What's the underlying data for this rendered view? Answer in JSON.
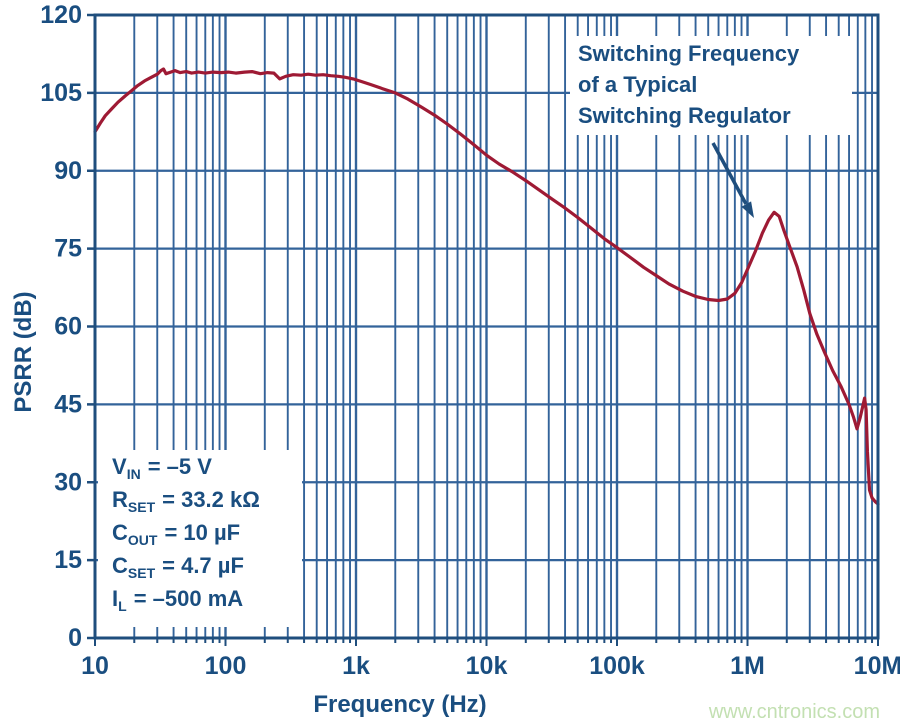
{
  "colors": {
    "grid": "#33639a",
    "axis": "#1f4e7d",
    "text": "#1a4e80",
    "curve": "#9e1a34",
    "arrow": "#1f4e7d",
    "watermark": "#c3e0b2",
    "background": "#ffffff"
  },
  "watermark": "www.cntronics.com",
  "chart_data": {
    "type": "line",
    "title": "",
    "xlabel": "Frequency (Hz)",
    "ylabel": "PSRR (dB)",
    "x_scale": "log",
    "xlim": [
      10,
      10000000
    ],
    "ylim": [
      0,
      120
    ],
    "grid": true,
    "y_ticks": [
      0,
      15,
      30,
      45,
      60,
      75,
      90,
      105,
      120
    ],
    "x_major_ticks": [
      10,
      100,
      1000,
      10000,
      100000,
      1000000,
      10000000
    ],
    "x_tick_labels": [
      "10",
      "100",
      "1k",
      "10k",
      "100k",
      "1M",
      "10M"
    ],
    "annotation": {
      "lines": [
        "Switching Frequency",
        "of a Typical",
        "Switching Regulator"
      ],
      "arrow_points_to": [
        1600000,
        82
      ]
    },
    "conditions": [
      {
        "sym": "V",
        "sub": "IN",
        "val": "= –5 V"
      },
      {
        "sym": "R",
        "sub": "SET",
        "val": "= 33.2 kΩ"
      },
      {
        "sym": "C",
        "sub": "OUT",
        "val": "= 10 µF"
      },
      {
        "sym": "C",
        "sub": "SET",
        "val": "= 4.7 µF"
      },
      {
        "sym": "I",
        "sub": "L",
        "val": "= –500 mA"
      }
    ],
    "series": [
      {
        "name": "PSRR",
        "color": "#9e1a34",
        "points": [
          [
            10,
            97.5
          ],
          [
            11,
            99.2
          ],
          [
            12,
            100.6
          ],
          [
            13.5,
            102.0
          ],
          [
            15,
            103.2
          ],
          [
            17,
            104.4
          ],
          [
            19,
            105.4
          ],
          [
            21,
            106.3
          ],
          [
            24,
            107.3
          ],
          [
            27,
            108.0
          ],
          [
            30,
            108.6
          ],
          [
            32,
            109.3
          ],
          [
            33.5,
            109.6
          ],
          [
            35,
            108.7
          ],
          [
            38,
            109.0
          ],
          [
            41,
            109.3
          ],
          [
            45,
            108.9
          ],
          [
            50,
            109.1
          ],
          [
            55,
            108.8
          ],
          [
            62,
            109.0
          ],
          [
            70,
            108.8
          ],
          [
            80,
            109.0
          ],
          [
            92,
            108.9
          ],
          [
            105,
            109.0
          ],
          [
            120,
            108.8
          ],
          [
            140,
            109.0
          ],
          [
            160,
            109.1
          ],
          [
            185,
            108.7
          ],
          [
            210,
            108.9
          ],
          [
            235,
            108.8
          ],
          [
            260,
            107.7
          ],
          [
            290,
            108.2
          ],
          [
            330,
            108.5
          ],
          [
            380,
            108.4
          ],
          [
            430,
            108.6
          ],
          [
            490,
            108.4
          ],
          [
            560,
            108.5
          ],
          [
            640,
            108.3
          ],
          [
            730,
            108.2
          ],
          [
            830,
            108.0
          ],
          [
            950,
            107.7
          ],
          [
            1100,
            107.2
          ],
          [
            1300,
            106.6
          ],
          [
            1600,
            105.8
          ],
          [
            2000,
            105.0
          ],
          [
            2500,
            103.8
          ],
          [
            3200,
            102.2
          ],
          [
            4000,
            100.7
          ],
          [
            5000,
            99.0
          ],
          [
            6300,
            97.1
          ],
          [
            8000,
            95.0
          ],
          [
            10000,
            93.0
          ],
          [
            12500,
            91.3
          ],
          [
            16000,
            89.7
          ],
          [
            20000,
            88.1
          ],
          [
            25000,
            86.4
          ],
          [
            32000,
            84.5
          ],
          [
            40000,
            82.8
          ],
          [
            50000,
            81.0
          ],
          [
            63000,
            79.0
          ],
          [
            80000,
            76.9
          ],
          [
            100000,
            75.2
          ],
          [
            125000,
            73.4
          ],
          [
            160000,
            71.4
          ],
          [
            200000,
            69.8
          ],
          [
            250000,
            68.2
          ],
          [
            320000,
            66.8
          ],
          [
            400000,
            65.8
          ],
          [
            500000,
            65.2
          ],
          [
            600000,
            65.0
          ],
          [
            700000,
            65.3
          ],
          [
            800000,
            66.4
          ],
          [
            900000,
            68.4
          ],
          [
            1000000,
            71.0
          ],
          [
            1150000,
            74.5
          ],
          [
            1300000,
            78.0
          ],
          [
            1450000,
            80.5
          ],
          [
            1600000,
            82.0
          ],
          [
            1750000,
            81.2
          ],
          [
            1900000,
            78.5
          ],
          [
            2100000,
            75.5
          ],
          [
            2400000,
            71.5
          ],
          [
            2700000,
            67.0
          ],
          [
            3000000,
            62.5
          ],
          [
            3400000,
            58.5
          ],
          [
            3900000,
            55.0
          ],
          [
            4500000,
            51.5
          ],
          [
            5200000,
            48.5
          ],
          [
            6000000,
            45.0
          ],
          [
            6500000,
            42.5
          ],
          [
            6900000,
            40.3
          ],
          [
            7300000,
            42.5
          ],
          [
            7700000,
            45.0
          ],
          [
            7900000,
            46.2
          ],
          [
            8100000,
            44.0
          ],
          [
            8300000,
            36.0
          ],
          [
            8600000,
            28.5
          ],
          [
            9000000,
            27.0
          ],
          [
            9500000,
            26.3
          ],
          [
            10000000,
            25.8
          ]
        ]
      }
    ]
  }
}
